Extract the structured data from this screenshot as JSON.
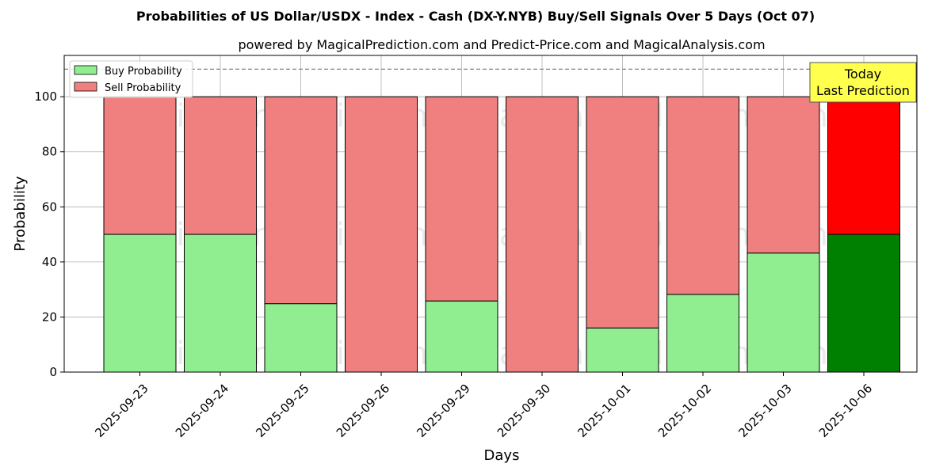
{
  "chart_data": {
    "type": "bar",
    "stacked": true,
    "title": "Probabilities of US Dollar/USDX - Index - Cash (DX-Y.NYB) Buy/Sell Signals Over 5 Days (Oct 07)",
    "subtitle": "powered by MagicalPrediction.com and Predict-Price.com and MagicalAnalysis.com",
    "xlabel": "Days",
    "ylabel": "Probability",
    "ylim": [
      0,
      115
    ],
    "yticks": [
      0,
      20,
      40,
      60,
      80,
      100
    ],
    "reference_line": 110,
    "grid": true,
    "legend_position": "top-left",
    "categories": [
      "2025-09-23",
      "2025-09-24",
      "2025-09-25",
      "2025-09-26",
      "2025-09-29",
      "2025-09-30",
      "2025-10-01",
      "2025-10-02",
      "2025-10-03",
      "2025-10-06"
    ],
    "series": [
      {
        "name": "Buy Probability",
        "color": "#90ee90",
        "highlight_color": "#008000",
        "values": [
          50,
          50,
          24.8,
          0,
          25.8,
          0,
          16,
          28.2,
          43.2,
          50
        ]
      },
      {
        "name": "Sell Probability",
        "color": "#f08080",
        "highlight_color": "#ff0000",
        "values": [
          50,
          50,
          75.2,
          100,
          74.2,
          100,
          84,
          71.8,
          56.8,
          50
        ]
      }
    ],
    "highlight_index": 9,
    "annotation": {
      "lines": [
        "Today",
        "Last Prediction"
      ],
      "background": "#ffff4d"
    },
    "watermarks": [
      "MagicalAnalysis.com",
      "MagicalPrediction.com"
    ]
  }
}
